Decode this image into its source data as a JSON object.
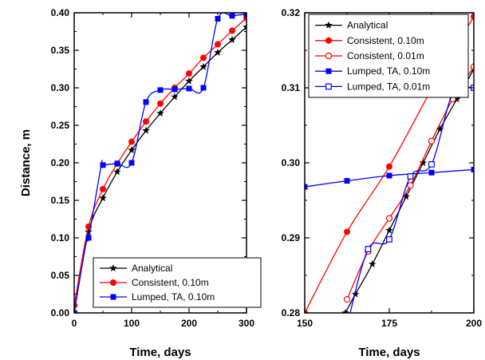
{
  "chart_data": [
    {
      "type": "line",
      "xlabel": "Time, days",
      "ylabel": "Distance, m",
      "xlim": [
        0,
        300
      ],
      "ylim": [
        0,
        0.4
      ],
      "xticks": [
        0,
        100,
        200,
        300
      ],
      "yticks": [
        0.0,
        0.05,
        0.1,
        0.15,
        0.2,
        0.25,
        0.3,
        0.35,
        0.4
      ],
      "x_tick_labels": [
        "0",
        "100",
        "200",
        "300"
      ],
      "y_tick_labels": [
        "0.00",
        "0.05",
        "0.10",
        "0.15",
        "0.20",
        "0.25",
        "0.30",
        "0.35",
        "0.40"
      ],
      "grid": false,
      "legend_position": "bottom-right",
      "series": [
        {
          "name": "Analytical",
          "color": "#000000",
          "marker": "star",
          "x": [
            0,
            25,
            50,
            75,
            100,
            125,
            150,
            175,
            200,
            225,
            250,
            275,
            300
          ],
          "y": [
            0.0,
            0.108,
            0.153,
            0.188,
            0.217,
            0.243,
            0.266,
            0.288,
            0.309,
            0.328,
            0.347,
            0.364,
            0.381
          ]
        },
        {
          "name": "Consistent, 0.10m",
          "color": "#ff0000",
          "marker": "filled-circle",
          "x": [
            0,
            25,
            50,
            75,
            100,
            125,
            150,
            175,
            200,
            225,
            250,
            275,
            300
          ],
          "y": [
            0.01,
            0.115,
            0.165,
            0.199,
            0.228,
            0.255,
            0.279,
            0.3,
            0.319,
            0.34,
            0.358,
            0.376,
            0.393
          ]
        },
        {
          "name": "Lumped, TA, 0.10m",
          "color": "#0000ff",
          "marker": "filled-square",
          "x": [
            0,
            22,
            25,
            47,
            50,
            75,
            100,
            125,
            150,
            175,
            200,
            225,
            250,
            275,
            300
          ],
          "y": [
            0.0,
            0.1,
            0.1,
            0.196,
            0.197,
            0.199,
            0.2,
            0.281,
            0.297,
            0.298,
            0.299,
            0.3,
            0.392,
            0.396,
            0.398
          ]
        }
      ]
    },
    {
      "type": "line",
      "xlabel": "Time, days",
      "ylabel": "",
      "xlim": [
        150,
        200
      ],
      "ylim": [
        0.28,
        0.32
      ],
      "xticks": [
        150,
        175,
        200
      ],
      "yticks": [
        0.28,
        0.29,
        0.3,
        0.31,
        0.32
      ],
      "x_tick_labels": [
        "150",
        "175",
        "200"
      ],
      "y_tick_labels": [
        "0.28",
        "0.29",
        "0.30",
        "0.31",
        "0.32"
      ],
      "grid": false,
      "legend_position": "top-left",
      "series": [
        {
          "name": "Analytical",
          "color": "#000000",
          "marker": "star",
          "x": [
            162,
            165,
            170,
            175,
            180,
            185,
            190,
            195,
            200
          ],
          "y": [
            0.28,
            0.2825,
            0.2865,
            0.291,
            0.2955,
            0.3,
            0.3045,
            0.3085,
            0.3125
          ]
        },
        {
          "name": "Consistent, 0.10m",
          "color": "#ff0000",
          "marker": "filled-circle",
          "x": [
            150,
            162.5,
            175,
            187.5,
            200
          ],
          "y": [
            0.28,
            0.2908,
            0.2995,
            0.3098,
            0.3195
          ]
        },
        {
          "name": "Consistent, 0.01m",
          "color": "#ff0000",
          "marker": "open-circle",
          "x": [
            162.5,
            168.75,
            175,
            181.25,
            187.5,
            193.75,
            200
          ],
          "y": [
            0.2818,
            0.2882,
            0.2926,
            0.297,
            0.3029,
            0.3085,
            0.3128
          ]
        },
        {
          "name": "Lumped, TA, 0.10m",
          "color": "#0000ff",
          "marker": "filled-square",
          "x": [
            150,
            162.5,
            175,
            187.5,
            200
          ],
          "y": [
            0.2968,
            0.2976,
            0.2983,
            0.2987,
            0.2991
          ]
        },
        {
          "name": "Lumped, TA, 0.01m",
          "color": "#0000ff",
          "marker": "open-square",
          "x": [
            162.5,
            168.75,
            175,
            181.25,
            187.5,
            193.75,
            200
          ],
          "y": [
            0.2783,
            0.2885,
            0.2898,
            0.2982,
            0.2998,
            0.3092,
            0.31
          ]
        }
      ]
    }
  ]
}
